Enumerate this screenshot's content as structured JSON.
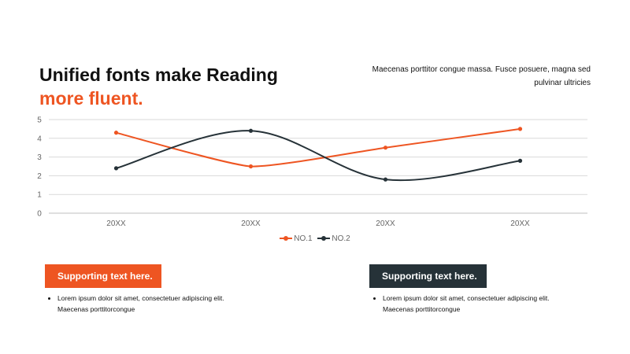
{
  "header": {
    "title_line1": "Unified fonts make Reading",
    "title_line2": "more fluent.",
    "description": "Maecenas porttitor congue massa. Fusce posuere, magna sed pulvinar ultricies"
  },
  "colors": {
    "accent": "#ee5522",
    "dark": "#263238",
    "grid": "#d9d9d9"
  },
  "chart_data": {
    "type": "line",
    "categories": [
      "20XX",
      "20XX",
      "20XX",
      "20XX"
    ],
    "series": [
      {
        "name": "NO.1",
        "values": [
          4.3,
          2.5,
          3.5,
          4.5
        ],
        "color": "#ee5522",
        "smooth": false
      },
      {
        "name": "NO.2",
        "values": [
          2.4,
          4.4,
          1.8,
          2.8
        ],
        "color": "#263238",
        "smooth": true
      }
    ],
    "title": "",
    "xlabel": "",
    "ylabel": "",
    "ylim": [
      0,
      5
    ],
    "yticks": [
      "0",
      "1",
      "2",
      "3",
      "4",
      "5"
    ],
    "grid": true,
    "legend": "bottom-center"
  },
  "cards": [
    {
      "label": "Supporting text here.",
      "bullet": "Lorem ipsum dolor sit amet, consectetuer adipiscing elit. Maecenas porttitorcongue"
    },
    {
      "label": "Supporting text here.",
      "bullet": "Lorem ipsum dolor sit amet, consectetuer adipiscing elit. Maecenas porttitorcongue"
    }
  ]
}
